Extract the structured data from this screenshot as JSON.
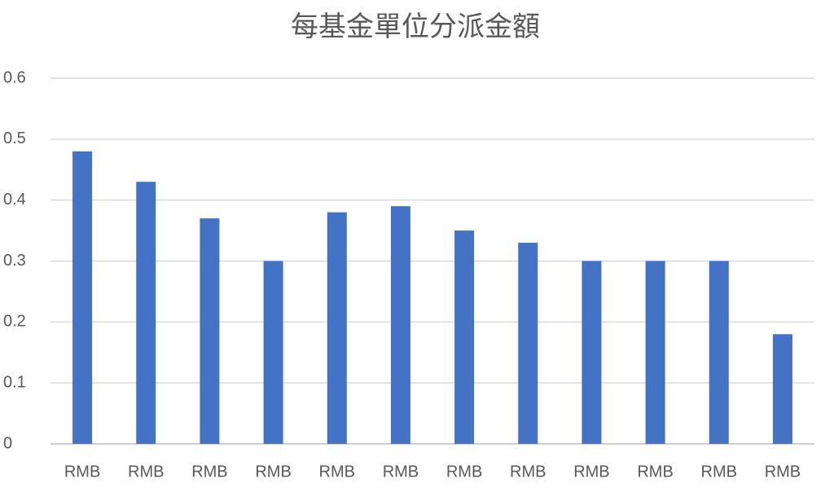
{
  "chart_data": {
    "type": "bar",
    "title": "每基金單位分派金額",
    "categories": [
      "RMB",
      "RMB",
      "RMB",
      "RMB",
      "RMB",
      "RMB",
      "RMB",
      "RMB",
      "RMB",
      "RMB",
      "RMB",
      "RMB"
    ],
    "values": [
      0.48,
      0.43,
      0.37,
      0.3,
      0.38,
      0.39,
      0.35,
      0.33,
      0.3,
      0.3,
      0.3,
      0.18
    ],
    "color": "#4472c4",
    "ylim": [
      0,
      0.6
    ],
    "yticks": [
      0,
      0.1,
      0.2,
      0.3,
      0.4,
      0.5,
      0.6
    ],
    "grid": true
  }
}
